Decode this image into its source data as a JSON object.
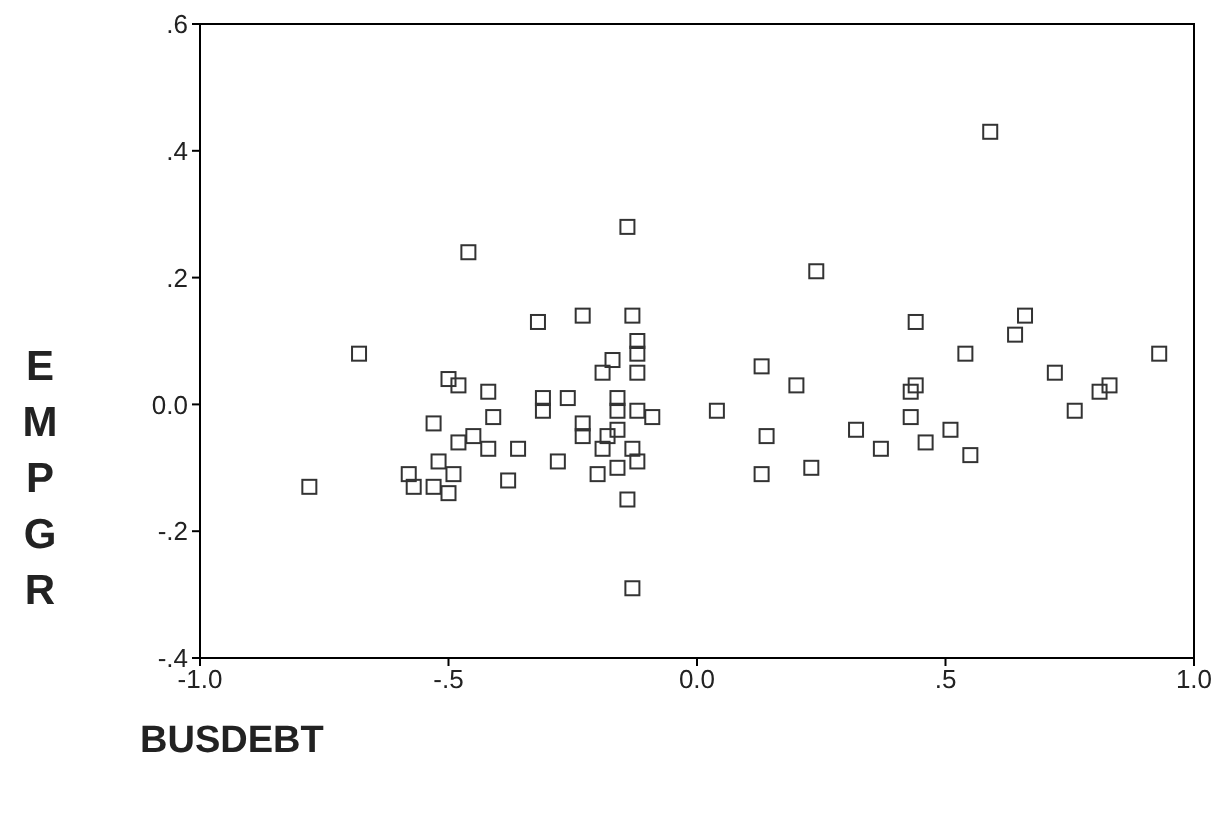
{
  "chart_data": {
    "type": "scatter",
    "xlabel": "BUSDEBT",
    "ylabel": "EMPGR",
    "marker": "square",
    "grid": false,
    "legend": false,
    "xlim": [
      -1.0,
      1.0
    ],
    "xticks": [
      {
        "value": -1,
        "label": "-1.0"
      },
      {
        "value": -0.5,
        "label": "-.5"
      },
      {
        "value": 0,
        "label": "0.0"
      },
      {
        "value": 0.5,
        "label": ".5"
      },
      {
        "value": 1,
        "label": "1.0"
      }
    ],
    "ylim": [
      -0.4,
      0.6
    ],
    "yticks": [
      {
        "value": -0.4,
        "label": "-.4"
      },
      {
        "value": -0.2,
        "label": "-.2"
      },
      {
        "value": 0,
        "label": "0.0"
      },
      {
        "value": 0.2,
        "label": ".2"
      },
      {
        "value": 0.4,
        "label": ".4"
      },
      {
        "value": 0.6,
        "label": ".6"
      }
    ],
    "series": [
      {
        "color": "#333333",
        "x": [
          -0.46,
          -0.32,
          -0.68,
          -0.5,
          -0.48,
          -0.42,
          -0.31,
          -0.31,
          -0.41,
          -0.53,
          -0.45,
          -0.48,
          -0.42,
          -0.36,
          -0.52,
          -0.58,
          -0.49,
          -0.38,
          -0.78,
          -0.57,
          -0.53,
          -0.5,
          -0.14,
          0.24,
          -0.23,
          -0.13,
          -0.12,
          -0.12,
          -0.17,
          -0.19,
          -0.12,
          0.13,
          0.2,
          -0.26,
          -0.16,
          -0.16,
          -0.12,
          -0.09,
          0.04,
          -0.23,
          -0.23,
          -0.16,
          -0.18,
          -0.19,
          -0.13,
          0.14,
          -0.28,
          -0.2,
          -0.16,
          -0.12,
          0.13,
          0.23,
          -0.14,
          -0.13,
          0.59,
          0.44,
          0.66,
          0.64,
          0.54,
          0.93,
          0.44,
          0.43,
          0.72,
          0.83,
          0.81,
          0.76,
          0.43,
          0.32,
          0.51,
          0.37,
          0.46,
          0.55
        ],
        "values": [
          0.24,
          0.13,
          0.08,
          0.04,
          0.03,
          0.02,
          0.01,
          -0.01,
          -0.02,
          -0.03,
          -0.05,
          -0.06,
          -0.07,
          -0.07,
          -0.09,
          -0.11,
          -0.11,
          -0.12,
          -0.13,
          -0.13,
          -0.13,
          -0.14,
          0.28,
          0.21,
          0.14,
          0.14,
          0.1,
          0.08,
          0.07,
          0.05,
          0.05,
          0.06,
          0.03,
          0.01,
          0.01,
          -0.01,
          -0.01,
          -0.02,
          -0.01,
          -0.03,
          -0.05,
          -0.04,
          -0.05,
          -0.07,
          -0.07,
          -0.05,
          -0.09,
          -0.11,
          -0.1,
          -0.09,
          -0.11,
          -0.1,
          -0.15,
          -0.29,
          0.43,
          0.13,
          0.14,
          0.11,
          0.08,
          0.08,
          0.03,
          0.02,
          0.05,
          0.03,
          0.02,
          -0.01,
          -0.02,
          -0.04,
          -0.04,
          -0.07,
          -0.06,
          -0.08
        ]
      }
    ]
  }
}
